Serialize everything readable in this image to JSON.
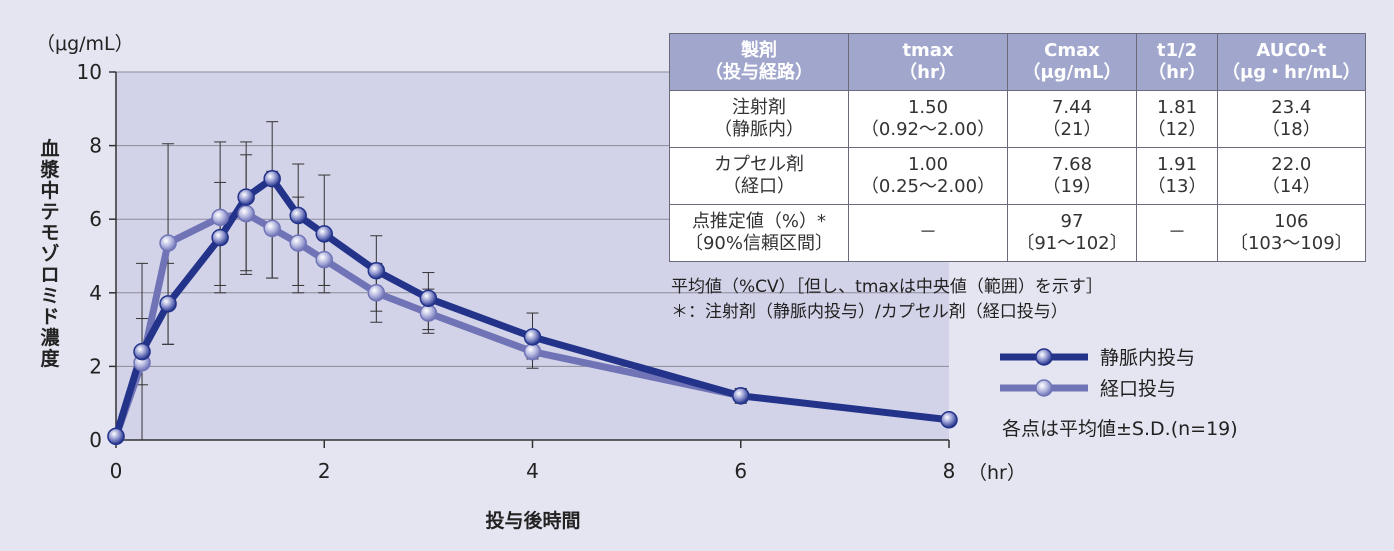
{
  "chart_data": {
    "type": "line",
    "y_unit": "（μg/mL）",
    "ylabel": "血漿中テモゾロミド濃度",
    "xlabel": "投与後時間",
    "x_unit": "（hr）",
    "xlim": [
      0,
      8
    ],
    "ylim": [
      0,
      10
    ],
    "x_ticks": [
      0,
      2,
      4,
      6,
      8
    ],
    "y_ticks": [
      0,
      2,
      4,
      6,
      8,
      10
    ],
    "grid": "horizontal",
    "legend_position": "right",
    "series": [
      {
        "name": "静脈内投与",
        "color": "#23338a",
        "x": [
          0,
          0.25,
          0.5,
          1.0,
          1.25,
          1.5,
          1.75,
          2.0,
          2.5,
          3.0,
          4.0,
          6.0,
          8.0
        ],
        "y": [
          0.1,
          2.4,
          3.7,
          5.5,
          6.6,
          7.1,
          6.1,
          5.6,
          4.6,
          3.85,
          2.8,
          1.2,
          0.55
        ],
        "err_low": [
          0.1,
          1.5,
          2.6,
          4.0,
          4.5,
          4.4,
          4.0,
          4.0,
          3.5,
          3.0,
          2.2,
          1.0,
          0.45
        ],
        "err_high": [
          0.1,
          3.3,
          4.8,
          7.0,
          8.1,
          8.65,
          7.5,
          7.2,
          5.55,
          4.55,
          3.45,
          1.4,
          0.65
        ]
      },
      {
        "name": "経口投与",
        "color": "#7074b6",
        "x": [
          0,
          0.25,
          0.5,
          1.0,
          1.25,
          1.5,
          1.75,
          2.0,
          2.5,
          3.0,
          4.0,
          6.0
        ],
        "y": [
          0.1,
          2.1,
          5.35,
          6.05,
          6.15,
          5.75,
          5.35,
          4.9,
          4.0,
          3.45,
          2.4,
          1.2
        ],
        "err_low": [
          0.1,
          0.0,
          2.6,
          4.2,
          4.6,
          4.4,
          4.2,
          4.2,
          3.2,
          2.9,
          1.95,
          1.0
        ],
        "err_high": [
          0.1,
          4.8,
          8.05,
          8.1,
          7.75,
          7.3,
          6.6,
          5.7,
          4.8,
          4.1,
          2.9,
          1.4
        ]
      }
    ]
  },
  "table": {
    "headers": [
      [
        "製剤",
        "（投与経路）"
      ],
      [
        "tmax",
        "（hr）"
      ],
      [
        "Cmax",
        "（μg/mL）"
      ],
      [
        "t1/2",
        "（hr）"
      ],
      [
        "AUC0-t",
        "（μg・hr/mL）"
      ]
    ],
    "rows": [
      [
        [
          "注射剤",
          "（静脈内）"
        ],
        [
          "1.50",
          "（0.92～2.00）"
        ],
        [
          "7.44",
          "（21）"
        ],
        [
          "1.81",
          "（12）"
        ],
        [
          "23.4",
          "（18）"
        ]
      ],
      [
        [
          "カプセル剤",
          "（経口）"
        ],
        [
          "1.00",
          "（0.25～2.00）"
        ],
        [
          "7.68",
          "（19）"
        ],
        [
          "1.91",
          "（13）"
        ],
        [
          "22.0",
          "（14）"
        ]
      ],
      [
        [
          "点推定値（%）*",
          "〔90%信頼区間〕"
        ],
        [
          "－",
          ""
        ],
        [
          "97",
          "〔91～102〕"
        ],
        [
          "－",
          ""
        ],
        [
          "106",
          "〔103～109〕"
        ]
      ]
    ]
  },
  "notes": {
    "line1": "平均値（%CV）［但し、tmaxは中央値（範囲）を示す］",
    "line2": "＊：注射剤（静脈内投与）/カプセル剤（経口投与）"
  },
  "legend": {
    "items": [
      {
        "label": "静脈内投与",
        "color": "#23338a"
      },
      {
        "label": "経口投与",
        "color": "#7074b6"
      }
    ],
    "note": "各点は平均値±S.D.(n=19)"
  }
}
